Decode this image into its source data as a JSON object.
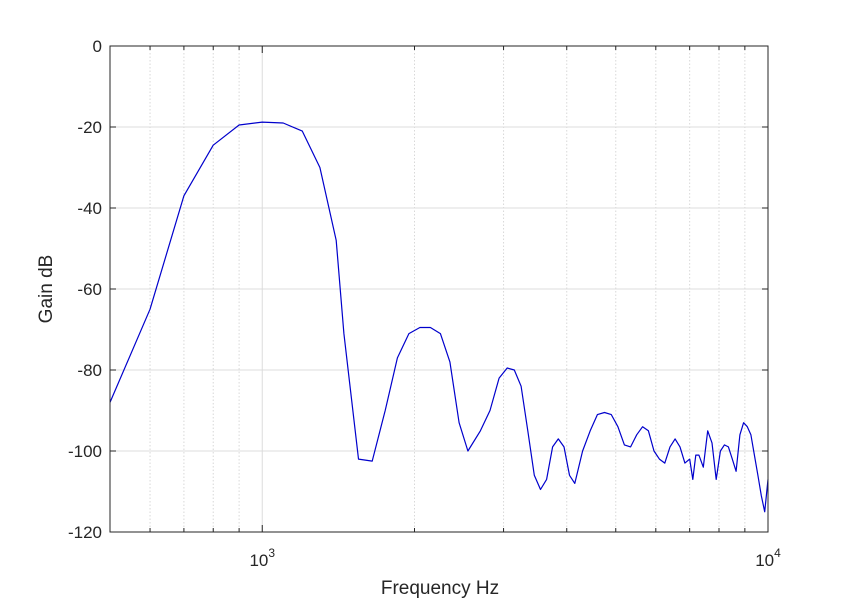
{
  "chart_data": {
    "type": "line",
    "xlabel": "Frequency Hz",
    "ylabel": "Gain  dB",
    "xscale": "log",
    "xlim": [
      500,
      10000
    ],
    "ylim": [
      -120,
      0
    ],
    "grid": true,
    "x_ticks": [
      {
        "base": "10",
        "exp": "3",
        "value": 1000
      },
      {
        "base": "10",
        "exp": "4",
        "value": 10000
      }
    ],
    "y_ticks": [
      {
        "label": "0",
        "value": 0
      },
      {
        "label": "-20",
        "value": -20
      },
      {
        "label": "-40",
        "value": -40
      },
      {
        "label": "-60",
        "value": -60
      },
      {
        "label": "-80",
        "value": -80
      },
      {
        "label": "-100",
        "value": -100
      },
      {
        "label": "-120",
        "value": -120
      }
    ],
    "series": [
      {
        "color": "#0000cc",
        "x": [
          500,
          600,
          700,
          800,
          900,
          1000,
          1100,
          1200,
          1300,
          1400,
          1450,
          1550,
          1650,
          1750,
          1850,
          1950,
          2050,
          2150,
          2250,
          2350,
          2450,
          2550,
          2700,
          2820,
          2940,
          3050,
          3150,
          3250,
          3350,
          3450,
          3550,
          3650,
          3750,
          3850,
          3950,
          4050,
          4150,
          4300,
          4450,
          4600,
          4750,
          4900,
          5050,
          5200,
          5350,
          5500,
          5650,
          5800,
          5950,
          6100,
          6250,
          6400,
          6550,
          6700,
          6850,
          7000,
          7100,
          7200,
          7300,
          7450,
          7600,
          7750,
          7900,
          8050,
          8200,
          8350,
          8500,
          8650,
          8800,
          8950,
          9100,
          9250,
          9400,
          9550,
          9700,
          9850,
          10000
        ],
        "y": [
          -88,
          -65,
          -37,
          -24.5,
          -19.5,
          -18.8,
          -19,
          -21,
          -30,
          -48,
          -71,
          -102,
          -102.5,
          -90,
          -77,
          -71,
          -69.5,
          -69.5,
          -71,
          -78,
          -93,
          -100,
          -95,
          -90,
          -82,
          -79.5,
          -80,
          -84,
          -95,
          -106,
          -109.5,
          -107,
          -99,
          -97,
          -99,
          -106,
          -108,
          -100,
          -95,
          -91,
          -90.5,
          -91,
          -94,
          -98.5,
          -99,
          -96,
          -94,
          -95,
          -100,
          -102,
          -103,
          -99,
          -97,
          -99,
          -103,
          -102,
          -107,
          -101,
          -101,
          -104,
          -95,
          -98,
          -107,
          -100,
          -98.5,
          -99,
          -102,
          -105,
          -96,
          -93,
          -94,
          -96,
          -101,
          -106,
          -111,
          -115,
          -107
        ]
      }
    ]
  }
}
